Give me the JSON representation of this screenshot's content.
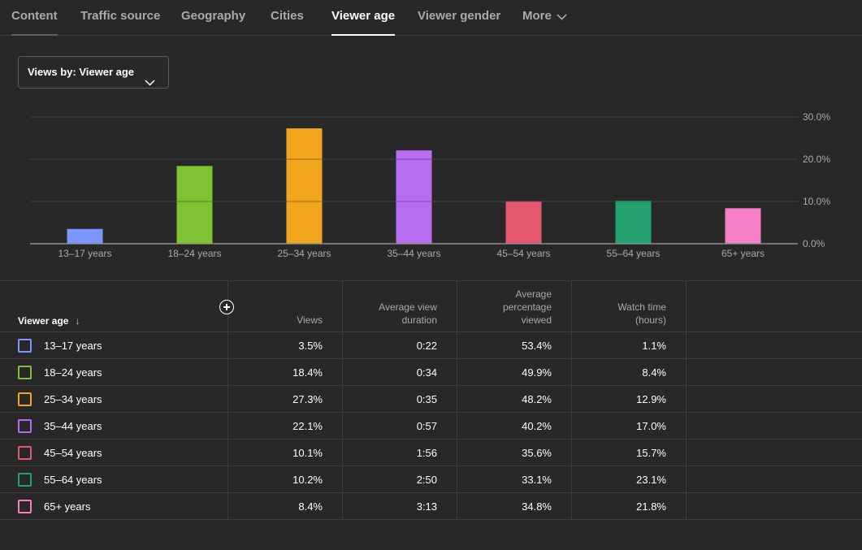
{
  "tabs": [
    {
      "label": "Content"
    },
    {
      "label": "Traffic source"
    },
    {
      "label": "Geography"
    },
    {
      "label": "Cities"
    },
    {
      "label": "Viewer age"
    },
    {
      "label": "Viewer gender"
    },
    {
      "label": "More"
    }
  ],
  "active_tab": "Viewer age",
  "dropdown": {
    "label": "Views by: Viewer age"
  },
  "chart_data": {
    "type": "bar",
    "categories": [
      "13–17 years",
      "18–24 years",
      "25–34 years",
      "35–44 years",
      "45–54 years",
      "55–64 years",
      "65+ years"
    ],
    "values": [
      3.5,
      18.4,
      27.3,
      22.1,
      10.1,
      10.2,
      8.4
    ],
    "colors": [
      "#7b96ff",
      "#7fc232",
      "#f0a51c",
      "#b86df0",
      "#e5566f",
      "#23a26f",
      "#f47fc7"
    ],
    "ylim": [
      0,
      30
    ],
    "yticks": [
      "0.0%",
      "10.0%",
      "20.0%",
      "30.0%"
    ],
    "ytick_values": [
      0,
      10,
      20,
      30
    ],
    "grid": true,
    "yaxis_side": "right"
  },
  "table": {
    "headers": {
      "age": "Viewer age",
      "sort_arrow": "↓",
      "views": "Views",
      "avg_duration": "Average view duration",
      "avg_pct": "Average percentage viewed",
      "watch_time": "Watch time (hours)"
    },
    "rows": [
      {
        "label": "13–17 years",
        "views": "3.5%",
        "duration": "0:22",
        "pct": "53.4%",
        "watch": "1.1%",
        "color": "#7b96ff"
      },
      {
        "label": "18–24 years",
        "views": "18.4%",
        "duration": "0:34",
        "pct": "49.9%",
        "watch": "8.4%",
        "color": "#7fc232"
      },
      {
        "label": "25–34 years",
        "views": "27.3%",
        "duration": "0:35",
        "pct": "48.2%",
        "watch": "12.9%",
        "color": "#f0a51c"
      },
      {
        "label": "35–44 years",
        "views": "22.1%",
        "duration": "0:57",
        "pct": "40.2%",
        "watch": "17.0%",
        "color": "#b86df0"
      },
      {
        "label": "45–54 years",
        "views": "10.1%",
        "duration": "1:56",
        "pct": "35.6%",
        "watch": "15.7%",
        "color": "#e5566f"
      },
      {
        "label": "55–64 years",
        "views": "10.2%",
        "duration": "2:50",
        "pct": "33.1%",
        "watch": "23.1%",
        "color": "#23a26f"
      },
      {
        "label": "65+ years",
        "views": "8.4%",
        "duration": "3:13",
        "pct": "34.8%",
        "watch": "21.8%",
        "color": "#f47fc7"
      }
    ]
  }
}
